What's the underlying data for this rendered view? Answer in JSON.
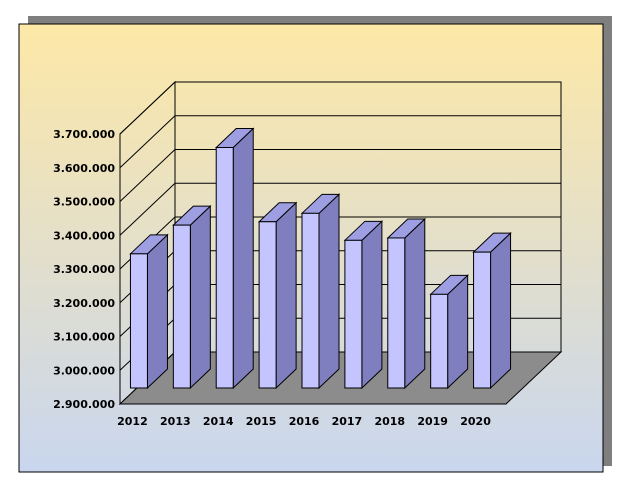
{
  "chart_data": {
    "type": "bar",
    "title": "",
    "xlabel": "",
    "ylabel": "",
    "categories": [
      "2012",
      "2013",
      "2014",
      "2015",
      "2016",
      "2017",
      "2018",
      "2019",
      "2020"
    ],
    "values": [
      3345000,
      3430000,
      3660000,
      3440000,
      3465000,
      3385000,
      3392000,
      3225000,
      3350000
    ],
    "y_ticks": [
      "2.900.000",
      "3.000.000",
      "3.100.000",
      "3.200.000",
      "3.300.000",
      "3.400.000",
      "3.500.000",
      "3.600.000",
      "3.700.000"
    ],
    "ylim": [
      2900000,
      3700000
    ],
    "grid": true,
    "legend": "none",
    "style": "3d-column",
    "colors": {
      "bar_front": "#C4C4FF",
      "bar_side": "#7F7FC0",
      "bar_top": "#9E9EE2",
      "floor": "#8C8C8C",
      "background_top": "#FDE8A6",
      "background_bottom": "#C9D6EE",
      "shadow": "#7F7F7F"
    }
  }
}
